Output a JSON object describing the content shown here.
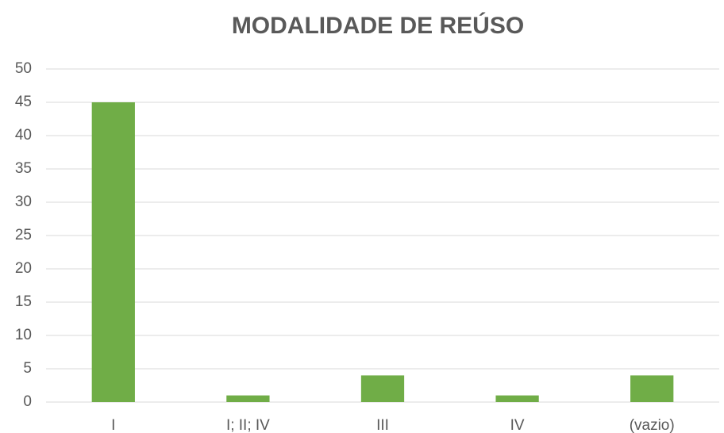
{
  "chart_data": {
    "type": "bar",
    "title": "MODALIDADE DE REÚSO",
    "categories": [
      "I",
      "I; II; IV",
      "III",
      "IV",
      "(vazio)"
    ],
    "values": [
      45,
      1,
      4,
      1,
      4
    ],
    "color": "#70ad47",
    "ylim": [
      0,
      50
    ],
    "yticks": [
      0,
      5,
      10,
      15,
      20,
      25,
      30,
      35,
      40,
      45,
      50
    ],
    "grid": true
  }
}
